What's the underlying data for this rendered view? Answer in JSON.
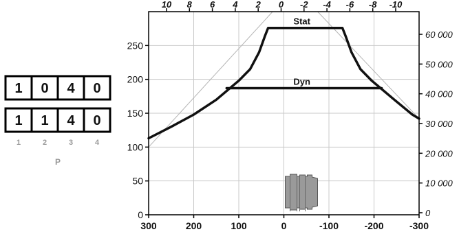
{
  "code_boxes": {
    "row1": [
      "1",
      "0",
      "4",
      "0"
    ],
    "row2": [
      "1",
      "1",
      "4",
      "0"
    ],
    "positions": [
      "1",
      "2",
      "3",
      "4"
    ],
    "label": "P"
  },
  "chart_data": {
    "type": "line",
    "x_bottom": {
      "min": 300,
      "max": -300,
      "ticks": [
        "300",
        "200",
        "100",
        "0",
        "-100",
        "-200",
        "-300"
      ]
    },
    "y_left": {
      "min": 0,
      "max": 300,
      "ticks": [
        "0",
        "50",
        "100",
        "150",
        "200",
        "250"
      ]
    },
    "x_top": {
      "ticks": [
        "10",
        "8",
        "6",
        "4",
        "2",
        "0",
        "-2",
        "-4",
        "-6",
        "-8",
        "-10"
      ]
    },
    "y_right": {
      "ticks": [
        "0",
        "10 000",
        "20 000",
        "30 000",
        "40 000",
        "50 000",
        "60 000"
      ]
    },
    "grid": true,
    "series": [
      {
        "name": "Stat",
        "points": [
          [
            300,
            113
          ],
          [
            250,
            130
          ],
          [
            200,
            148
          ],
          [
            150,
            170
          ],
          [
            100,
            198
          ],
          [
            75,
            215
          ],
          [
            55,
            240
          ],
          [
            42,
            264
          ],
          [
            35,
            276
          ],
          [
            -130,
            276
          ],
          [
            -137,
            264
          ],
          [
            -150,
            240
          ],
          [
            -170,
            215
          ],
          [
            -195,
            198
          ],
          [
            -245,
            170
          ],
          [
            -285,
            148
          ],
          [
            -300,
            142
          ]
        ]
      },
      {
        "name": "Dyn",
        "points": [
          [
            127,
            187
          ],
          [
            -217,
            187
          ]
        ]
      }
    ],
    "asymptotes": [
      {
        "points": [
          [
            300,
            100
          ],
          [
            25,
            300
          ]
        ]
      },
      {
        "points": [
          [
            -300,
            142
          ],
          [
            -75,
            300
          ]
        ]
      }
    ],
    "colors": {
      "curve": "#111111",
      "asymptote": "#b5b5b5",
      "grid": "#c8c8c8",
      "frame": "#000000"
    },
    "icon": "connector-body-icon"
  }
}
